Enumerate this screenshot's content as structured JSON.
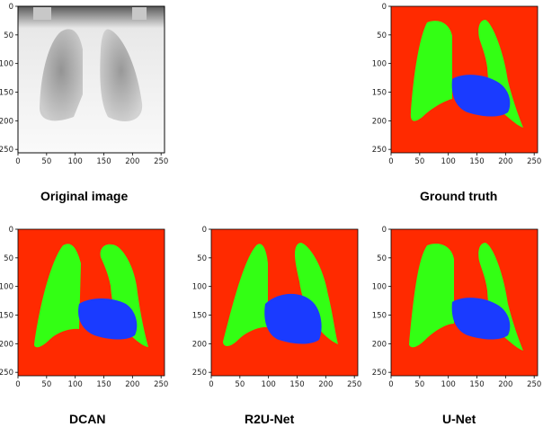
{
  "colors": {
    "background": "#ff2a00",
    "lungs": "#33ff14",
    "heart": "#1a3bff",
    "xray_dark": "#6a6a6a",
    "xray_light": "#f2f2f2"
  },
  "axes": {
    "x_ticks": [
      "0",
      "50",
      "100",
      "150",
      "200",
      "250"
    ],
    "y_ticks": [
      "0",
      "50",
      "100",
      "150",
      "200",
      "250"
    ]
  },
  "panels": [
    {
      "id": "original",
      "caption": "Original image"
    },
    {
      "id": "ground-truth",
      "caption": "Ground truth"
    },
    {
      "id": "dcan",
      "caption": "DCAN"
    },
    {
      "id": "r2u-net",
      "caption": "R2U-Net"
    },
    {
      "id": "u-net",
      "caption": "U-Net"
    }
  ]
}
